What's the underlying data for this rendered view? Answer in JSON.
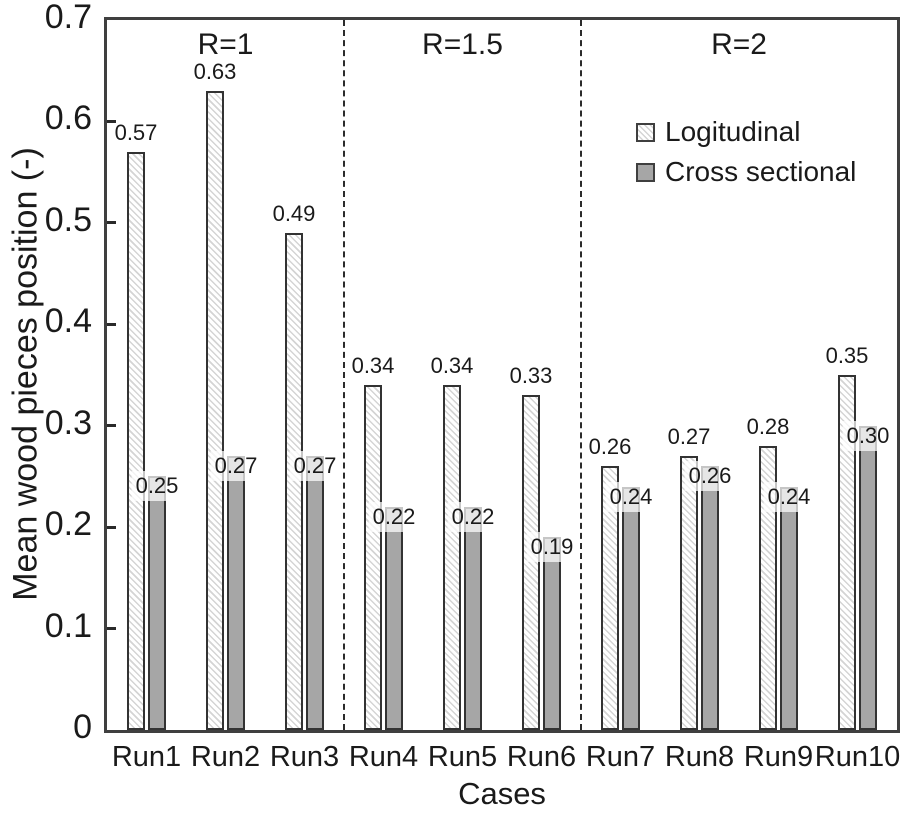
{
  "chart_data": {
    "type": "bar",
    "title": "",
    "xlabel": "Cases",
    "ylabel": "Mean wood pieces position (-)",
    "ylim": [
      0,
      0.7
    ],
    "ytick_labels": [
      "0",
      "0.1",
      "0.2",
      "0.3",
      "0.4",
      "0.5",
      "0.6",
      "0.7"
    ],
    "grid": false,
    "legend_position": "inside-top-right",
    "categories": [
      "Run1",
      "Run2",
      "Run3",
      "Run4",
      "Run5",
      "Run6",
      "Run7",
      "Run8",
      "Run9",
      "Run10"
    ],
    "sections": [
      {
        "label": "R=1",
        "from_index": 0,
        "to_index": 3
      },
      {
        "label": "R=1.5",
        "from_index": 3,
        "to_index": 6
      },
      {
        "label": "R=2",
        "from_index": 6,
        "to_index": 10
      }
    ],
    "series": [
      {
        "name": "Logitudinal",
        "style": "hatched-white",
        "values": [
          0.57,
          0.63,
          0.49,
          0.34,
          0.34,
          0.33,
          0.26,
          0.27,
          0.28,
          0.35
        ],
        "labels": [
          "0.57",
          "0.63",
          "0.49",
          "0.34",
          "0.34",
          "0.33",
          "0.26",
          "0.27",
          "0.28",
          "0.35"
        ]
      },
      {
        "name": "Cross sectional",
        "style": "solid-gray",
        "values": [
          0.25,
          0.27,
          0.27,
          0.22,
          0.22,
          0.19,
          0.24,
          0.26,
          0.24,
          0.3
        ],
        "labels": [
          "0.25",
          "0.27",
          "0.27",
          "0.22",
          "0.22",
          "0.19",
          "0.24",
          "0.26",
          "0.24",
          "0.30"
        ]
      }
    ],
    "colors": {
      "cross_fill": "#a6a6a6",
      "bar_border": "#333333",
      "hatch_line": "#d4d4d4",
      "frame": "#3f3f3f",
      "text": "#1a1a1a",
      "label_box_fill": "rgba(255,255,255,0.72)"
    }
  }
}
